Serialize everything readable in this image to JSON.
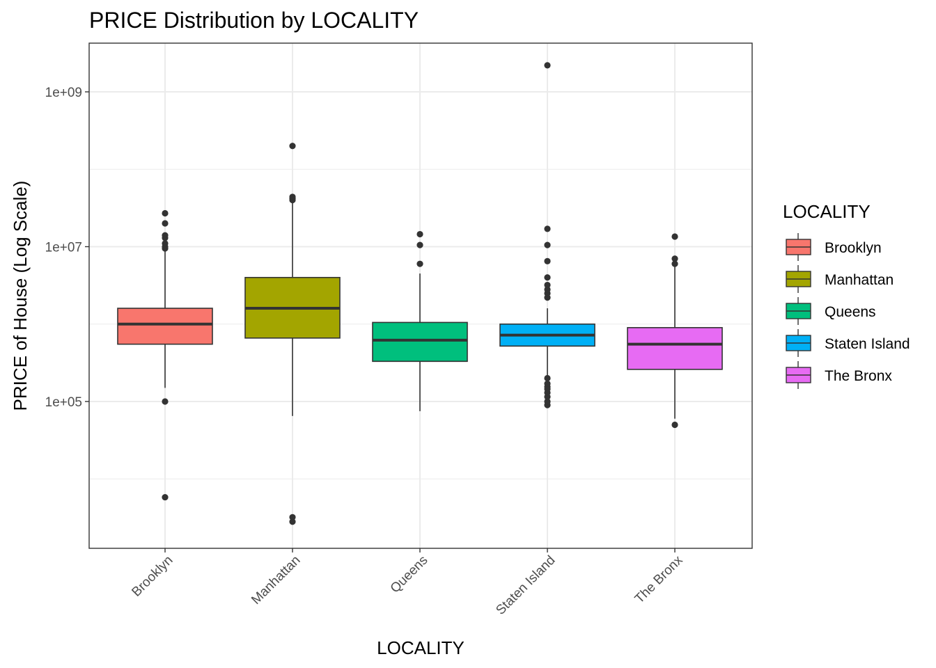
{
  "chart_data": {
    "type": "boxplot",
    "title": "PRICE Distribution by LOCALITY",
    "xlabel": "LOCALITY",
    "ylabel": "PRICE of House (Log Scale)",
    "y_scale": "log10",
    "ylim": [
      1500,
      3000000000
    ],
    "y_ticks": [
      {
        "value": 100000,
        "label": "1e+05"
      },
      {
        "value": 10000000,
        "label": "1e+07"
      },
      {
        "value": 1000000000,
        "label": "1e+09"
      }
    ],
    "y_minor_gridlines": [
      10000,
      1000000,
      100000000
    ],
    "grid": true,
    "legend": {
      "title": "LOCALITY",
      "position": "right"
    },
    "categories": [
      "Brooklyn",
      "Manhattan",
      "Queens",
      "Staten Island",
      "The Bronx"
    ],
    "series": [
      {
        "name": "Brooklyn",
        "color": "#F8766D",
        "whisker_low": 150000,
        "q1": 550000,
        "median": 1000000,
        "q3": 1600000,
        "whisker_high": 9000000,
        "outliers": [
          5800,
          100000,
          9500000,
          10000000,
          11000000,
          13000000,
          14000000,
          20000000,
          27000000
        ]
      },
      {
        "name": "Manhattan",
        "color": "#A3A500",
        "whisker_low": 65000,
        "q1": 660000,
        "median": 1600000,
        "q3": 4000000,
        "whisker_high": 38000000,
        "outliers": [
          2800,
          3200,
          40000000,
          42000000,
          44000000,
          200000000
        ]
      },
      {
        "name": "Queens",
        "color": "#00BF7D",
        "whisker_low": 75000,
        "q1": 330000,
        "median": 620000,
        "q3": 1050000,
        "whisker_high": 4500000,
        "outliers": [
          6000000,
          10500000,
          14500000
        ]
      },
      {
        "name": "Staten Island",
        "color": "#00B0F6",
        "whisker_low": 200000,
        "q1": 520000,
        "median": 720000,
        "q3": 1000000,
        "whisker_high": 1600000,
        "outliers": [
          90000,
          100000,
          115000,
          130000,
          145000,
          155000,
          170000,
          200000,
          2200000,
          2500000,
          2800000,
          3200000,
          4000000,
          6500000,
          10500000,
          17000000,
          2200000000
        ]
      },
      {
        "name": "The Bronx",
        "color": "#E76BF3",
        "whisker_low": 60000,
        "q1": 260000,
        "median": 550000,
        "q3": 900000,
        "whisker_high": 5500000,
        "outliers": [
          50000,
          6000000,
          7000000,
          13500000
        ]
      }
    ]
  }
}
